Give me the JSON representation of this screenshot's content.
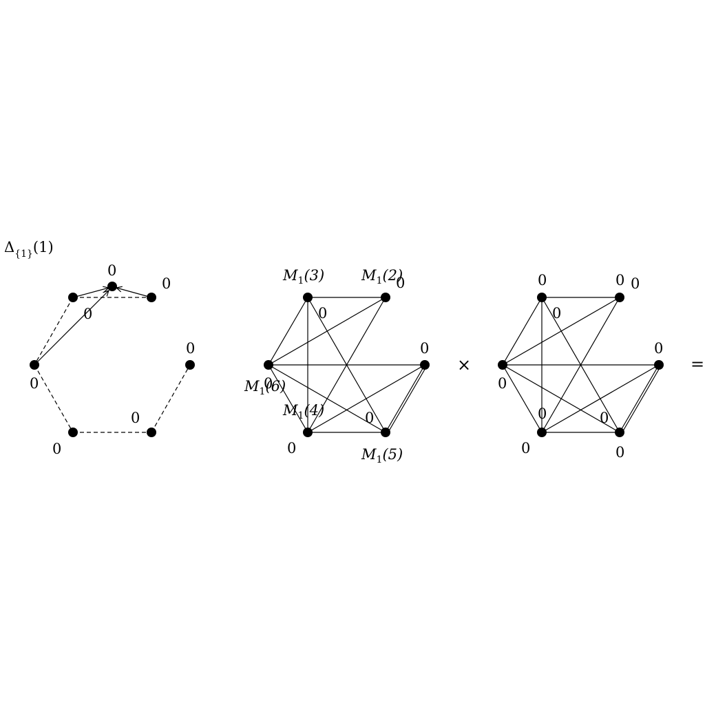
{
  "diagram1": {
    "title": {
      "base": "Δ",
      "sub": "{1}",
      "arg": "(1)"
    },
    "labels": [
      "0",
      "0",
      "0",
      "0",
      "0",
      "0",
      "0"
    ]
  },
  "diagram2": {
    "labels": {
      "m3": {
        "base": "M",
        "sub": "1",
        "arg": "(3)"
      },
      "m2": {
        "base": "M",
        "sub": "1",
        "arg": "(2)"
      },
      "m6": {
        "base": "M",
        "sub": "1",
        "arg": "(6)"
      },
      "m4": {
        "base": "M",
        "sub": "1",
        "arg": "(4)"
      },
      "m5": {
        "base": "M",
        "sub": "1",
        "arg": "(5)"
      },
      "zeros": [
        "0",
        "0",
        "0",
        "0",
        "0",
        "0"
      ]
    }
  },
  "diagram3": {
    "zeros": [
      "0",
      "0",
      "0",
      "0",
      "0",
      "0",
      "0",
      "0",
      "0",
      "0"
    ]
  },
  "operators": {
    "times": "×",
    "equals": "="
  }
}
